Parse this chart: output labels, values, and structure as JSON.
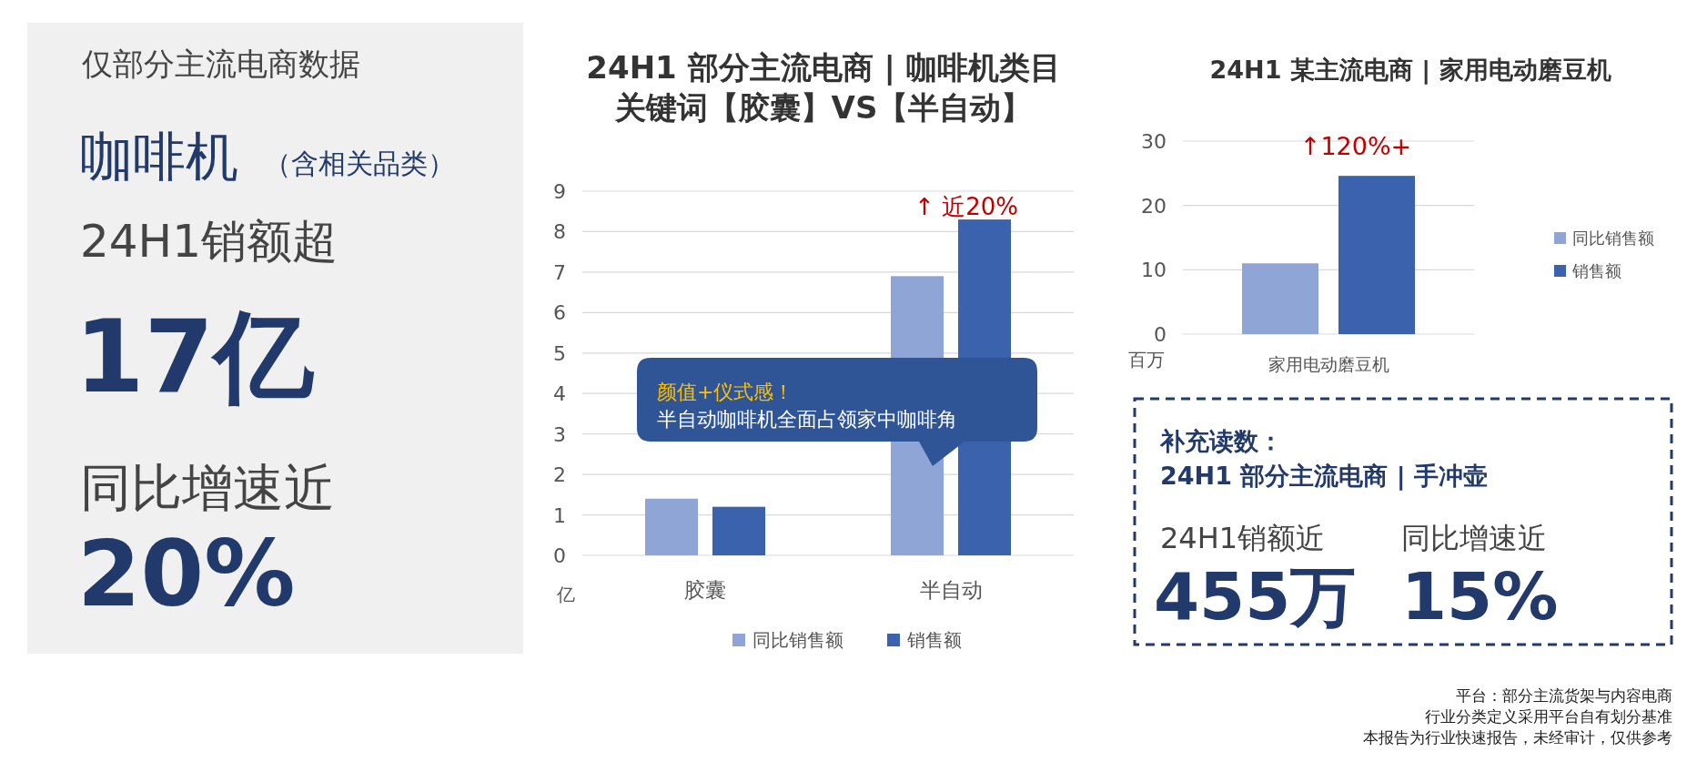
{
  "chart_data": [
    {
      "type": "other",
      "title": "仅部分主流电商数据",
      "annotations": [
        "咖啡机",
        "（含相关品类）",
        "24H1销额超",
        "17亿",
        "同比增速近",
        "20%"
      ]
    },
    {
      "type": "bar",
      "title": "24H1 部分主流电商 | 咖啡机类目",
      "subtitle": "关键词【胶囊】VS【半自动】",
      "ylabel": "亿",
      "categories": [
        "胶囊",
        "半自动"
      ],
      "series": [
        {
          "name": "同比销售额",
          "color": "#8fa5d6",
          "values": [
            1.4,
            6.9
          ]
        },
        {
          "name": "销售额",
          "color": "#3a62ad",
          "values": [
            1.2,
            8.3
          ]
        }
      ],
      "ylim": [
        0,
        9
      ],
      "yticks": [
        0,
        1,
        2,
        3,
        4,
        5,
        6,
        7,
        8,
        9
      ],
      "grid": "y",
      "legend": "bottom",
      "annotations": [
        "↑ 近20%",
        "颜值+仪式感！",
        "半自动咖啡机全面占领家中咖啡角"
      ]
    },
    {
      "type": "bar",
      "title": "24H1 某主流电商 | 家用电动磨豆机",
      "ylabel": "百万",
      "categories": [
        "家用电动磨豆机"
      ],
      "series": [
        {
          "name": "同比销售额",
          "color": "#8fa5d6",
          "values": [
            11
          ]
        },
        {
          "name": "销售额",
          "color": "#3a62ad",
          "values": [
            24.6
          ]
        }
      ],
      "ylim": [
        0,
        30
      ],
      "yticks": [
        0,
        10,
        20,
        30
      ],
      "grid": "y",
      "legend": "right",
      "annotations": [
        "↑120%+"
      ]
    },
    {
      "type": "other",
      "title": "补充读数：",
      "subtitle": "24H1 部分主流电商 | 手冲壶",
      "annotations": [
        "24H1销额近",
        "455万",
        "同比增速近",
        "15%"
      ]
    },
    {
      "type": "other",
      "annotations": [
        "平台：部分主流货架与内容电商",
        "行业分类定义采用平台自有划分基准",
        "本报告为行业快速报告，未经审计，仅供参考"
      ]
    }
  ]
}
